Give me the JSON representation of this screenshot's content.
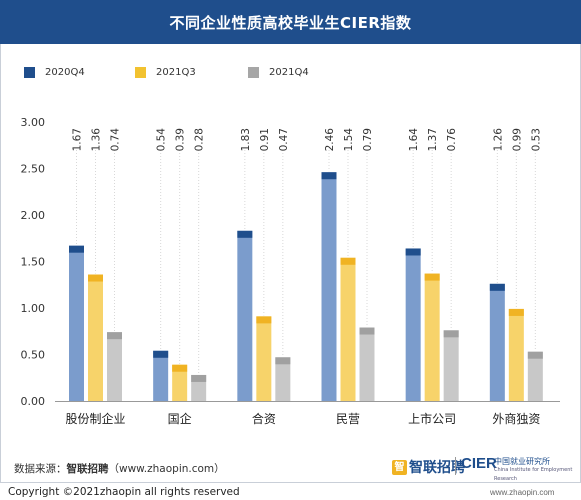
{
  "title": "不同企业性质高校毕业生CIER指数",
  "legend": [
    {
      "label": "2020Q4",
      "color": "#1f4e8c"
    },
    {
      "label": "2021Q3",
      "color": "#f2c230"
    },
    {
      "label": "2021Q4",
      "color": "#a6a6a6"
    }
  ],
  "colors": {
    "2020Q4": {
      "cap": "#1f4e8c",
      "body": "#7b9ccc"
    },
    "2021Q3": {
      "cap": "#f0b323",
      "body": "#f7d36a"
    },
    "2021Q4": {
      "cap": "#a0a0a0",
      "body": "#c8c8c8"
    }
  },
  "chart_data": {
    "type": "bar",
    "categories": [
      "股份制企业",
      "国企",
      "合资",
      "民营",
      "上市公司",
      "外商独资"
    ],
    "series": [
      {
        "name": "2020Q4",
        "values": [
          1.67,
          0.54,
          1.83,
          2.46,
          1.64,
          1.26
        ]
      },
      {
        "name": "2021Q3",
        "values": [
          1.36,
          0.39,
          0.91,
          1.54,
          1.37,
          0.99
        ]
      },
      {
        "name": "2021Q4",
        "values": [
          0.74,
          0.28,
          0.47,
          0.79,
          0.76,
          0.53
        ]
      }
    ],
    "data_labels": [
      [
        "1.67",
        "1.36",
        "0.74"
      ],
      [
        "0.54",
        "0.39",
        "0.28"
      ],
      [
        "1.83",
        "0.91",
        "0.47"
      ],
      [
        "2.46",
        "1.54",
        "0.79"
      ],
      [
        "1.64",
        "1.37",
        "0.76"
      ],
      [
        "1.26",
        "0.99",
        "0.53"
      ]
    ],
    "yticks": [
      "0.00",
      "0.50",
      "1.00",
      "1.50",
      "2.00",
      "2.50",
      "3.00"
    ],
    "ylim": [
      0,
      3
    ],
    "grid": false,
    "legend_position": "top-left"
  },
  "footer": {
    "source_prefix": "数据来源：",
    "source_name": "智联招聘",
    "source_url": "（www.zhaopin.com）",
    "logo_zhaopin": "智联招聘",
    "logo_zhaopin_mark": "智",
    "logo_cier": "CIER",
    "logo_cier_cn": "中国就业研究所",
    "logo_cier_en": "China Institute for Employment Research",
    "copyright": "Copyright ©2021zhaopin all rights reserved",
    "watermark": "www.zhaopin.com"
  }
}
